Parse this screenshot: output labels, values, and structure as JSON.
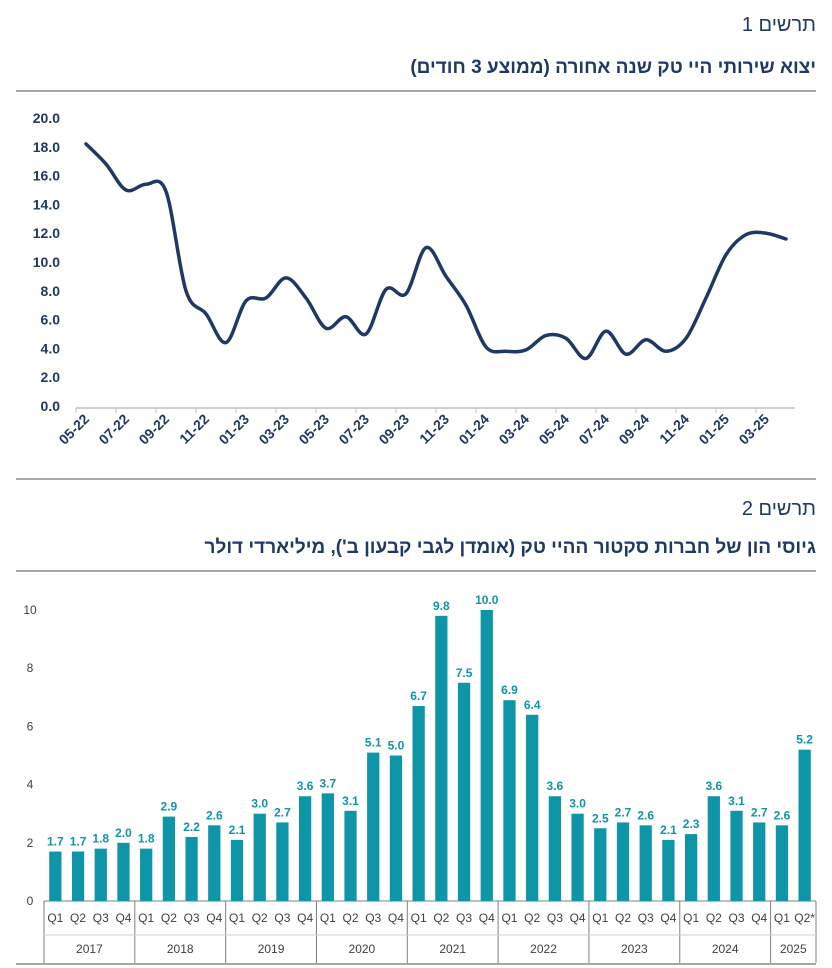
{
  "figure1": {
    "number_label": "תרשים 1",
    "title": "יצוא שירותי היי טק שנה אחורה (ממוצע 3 חודים)",
    "colors": {
      "line": "#1f3864",
      "axis": "#bfbfbf",
      "text": "#1f3864"
    },
    "chart_data": {
      "type": "line",
      "ylim": [
        0,
        20
      ],
      "yticks": [
        "0.0",
        "2.0",
        "4.0",
        "6.0",
        "8.0",
        "10.0",
        "12.0",
        "14.0",
        "16.0",
        "18.0",
        "20.0"
      ],
      "xtick_labels": [
        "05-22",
        "07-22",
        "09-22",
        "11-22",
        "01-23",
        "03-23",
        "05-23",
        "07-23",
        "09-23",
        "11-23",
        "01-24",
        "03-24",
        "05-24",
        "07-24",
        "09-24",
        "11-24",
        "01-25",
        "03-25"
      ],
      "x": [
        "05-22",
        "06-22",
        "07-22",
        "08-22",
        "09-22",
        "10-22",
        "11-22",
        "12-22",
        "01-23",
        "02-23",
        "03-23",
        "04-23",
        "05-23",
        "06-23",
        "07-23",
        "08-23",
        "09-23",
        "10-23",
        "11-23",
        "12-23",
        "01-24",
        "02-24",
        "03-24",
        "04-24",
        "05-24",
        "06-24",
        "07-24",
        "08-24",
        "09-24",
        "10-24",
        "11-24",
        "12-24",
        "01-25",
        "02-25",
        "03-25",
        "04-25"
      ],
      "values": [
        18.2,
        16.8,
        15.0,
        15.4,
        14.9,
        8.0,
        6.4,
        4.4,
        7.3,
        7.5,
        8.9,
        7.5,
        5.4,
        6.2,
        5.0,
        8.1,
        7.8,
        11.0,
        9.0,
        7.0,
        4.1,
        3.8,
        3.9,
        4.9,
        4.7,
        3.3,
        5.2,
        3.6,
        4.6,
        3.8,
        4.7,
        7.5,
        10.5,
        11.9,
        12.0,
        11.6
      ]
    }
  },
  "figure2": {
    "number_label": "תרשים 2",
    "title": "גיוסי הון של חברות סקטור ההיי טק (אומדן לגבי קבעון ב'), מיליארדי דולר",
    "colors": {
      "bar": "#0f95a8",
      "label": "#0f95a8",
      "axis": "#7f7f7f",
      "text": "#404040"
    },
    "chart_data": {
      "type": "bar",
      "ylim": [
        0,
        10
      ],
      "yticks": [
        "0",
        "2",
        "4",
        "6",
        "8",
        "10"
      ],
      "categories": [
        "Q1",
        "Q2",
        "Q3",
        "Q4",
        "Q1",
        "Q2",
        "Q3",
        "Q4",
        "Q1",
        "Q2",
        "Q3",
        "Q4",
        "Q1",
        "Q2",
        "Q3",
        "Q4",
        "Q1",
        "Q2",
        "Q3",
        "Q4",
        "Q1",
        "Q2",
        "Q3",
        "Q4",
        "Q1",
        "Q2",
        "Q3",
        "Q4",
        "Q1",
        "Q2",
        "Q3",
        "Q4",
        "Q1",
        "Q2*"
      ],
      "values": [
        1.7,
        1.7,
        1.8,
        2.0,
        1.8,
        2.9,
        2.2,
        2.6,
        2.1,
        3.0,
        2.7,
        3.6,
        3.7,
        3.1,
        5.1,
        5.0,
        6.7,
        9.8,
        7.5,
        10.0,
        6.9,
        6.4,
        3.6,
        3.0,
        2.5,
        2.7,
        2.6,
        2.1,
        2.3,
        3.6,
        3.1,
        2.7,
        2.6,
        5.2
      ],
      "data_labels": [
        "1.7",
        "1.7",
        "1.8",
        "2.0",
        "1.8",
        "2.9",
        "2.2",
        "2.6",
        "2.1",
        "3.0",
        "2.7",
        "3.6",
        "3.7",
        "3.1",
        "5.1",
        "5.0",
        "6.7",
        "9.8",
        "7.5",
        "10.0",
        "6.9",
        "6.4",
        "3.6",
        "3.0",
        "2.5",
        "2.7",
        "2.6",
        "2.1",
        "2.3",
        "3.6",
        "3.1",
        "2.7",
        "2.6",
        "5.2"
      ],
      "groups": [
        {
          "label": "2017",
          "count": 4
        },
        {
          "label": "2018",
          "count": 4
        },
        {
          "label": "2019",
          "count": 4
        },
        {
          "label": "2020",
          "count": 4
        },
        {
          "label": "2021",
          "count": 4
        },
        {
          "label": "2022",
          "count": 4
        },
        {
          "label": "2023",
          "count": 4
        },
        {
          "label": "2024",
          "count": 4
        },
        {
          "label": "2025",
          "count": 2
        }
      ]
    }
  }
}
